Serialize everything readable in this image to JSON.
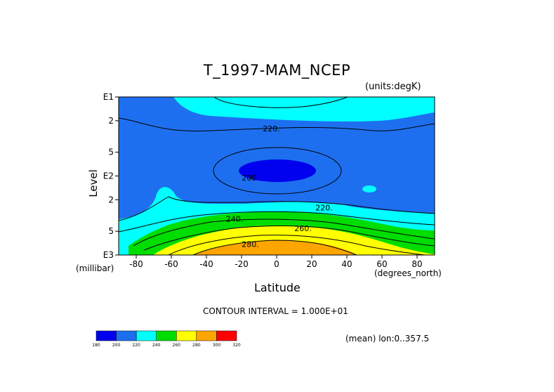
{
  "chart_data": {
    "type": "heatmap",
    "title": "T_1997-MAM_NCEP",
    "units_label": "(units:degK)",
    "xlabel": "Latitude",
    "xlabel_unit": "(degrees_north)",
    "ylabel": "Level",
    "ylabel_unit": "(millibar)",
    "xlim": [
      -90,
      90
    ],
    "x_ticks": [
      -80,
      -60,
      -40,
      -20,
      0,
      20,
      40,
      60,
      80
    ],
    "y_log_range_mb": [
      10,
      1000
    ],
    "y_ticks": [
      {
        "label": "E1",
        "mb": 10
      },
      {
        "label": "2",
        "mb": 20
      },
      {
        "label": "5",
        "mb": 50
      },
      {
        "label": "E2",
        "mb": 100
      },
      {
        "label": "2",
        "mb": 200
      },
      {
        "label": "5",
        "mb": 500
      },
      {
        "label": "E3",
        "mb": 1000
      }
    ],
    "contour_labels": [
      {
        "text": "220.",
        "lat": -3,
        "mb": 25
      },
      {
        "text": "200.",
        "lat": -15,
        "mb": 105
      },
      {
        "text": "220.",
        "lat": 27,
        "mb": 250
      },
      {
        "text": "240.",
        "lat": -24,
        "mb": 350
      },
      {
        "text": "260.",
        "lat": 15,
        "mb": 460
      },
      {
        "text": "280.",
        "lat": -15,
        "mb": 730
      }
    ],
    "contour_interval": "CONTOUR INTERVAL = 1.000E+01",
    "mean_note": "(mean) lon:0..357.5",
    "colorbar": {
      "labels": [
        "180",
        "200",
        "220",
        "240",
        "260",
        "280",
        "300",
        "320"
      ],
      "colors": [
        "#0000ee",
        "#1e6ff0",
        "#00ffff",
        "#00dd00",
        "#ffff00",
        "#ffa500",
        "#ff0000"
      ]
    }
  }
}
